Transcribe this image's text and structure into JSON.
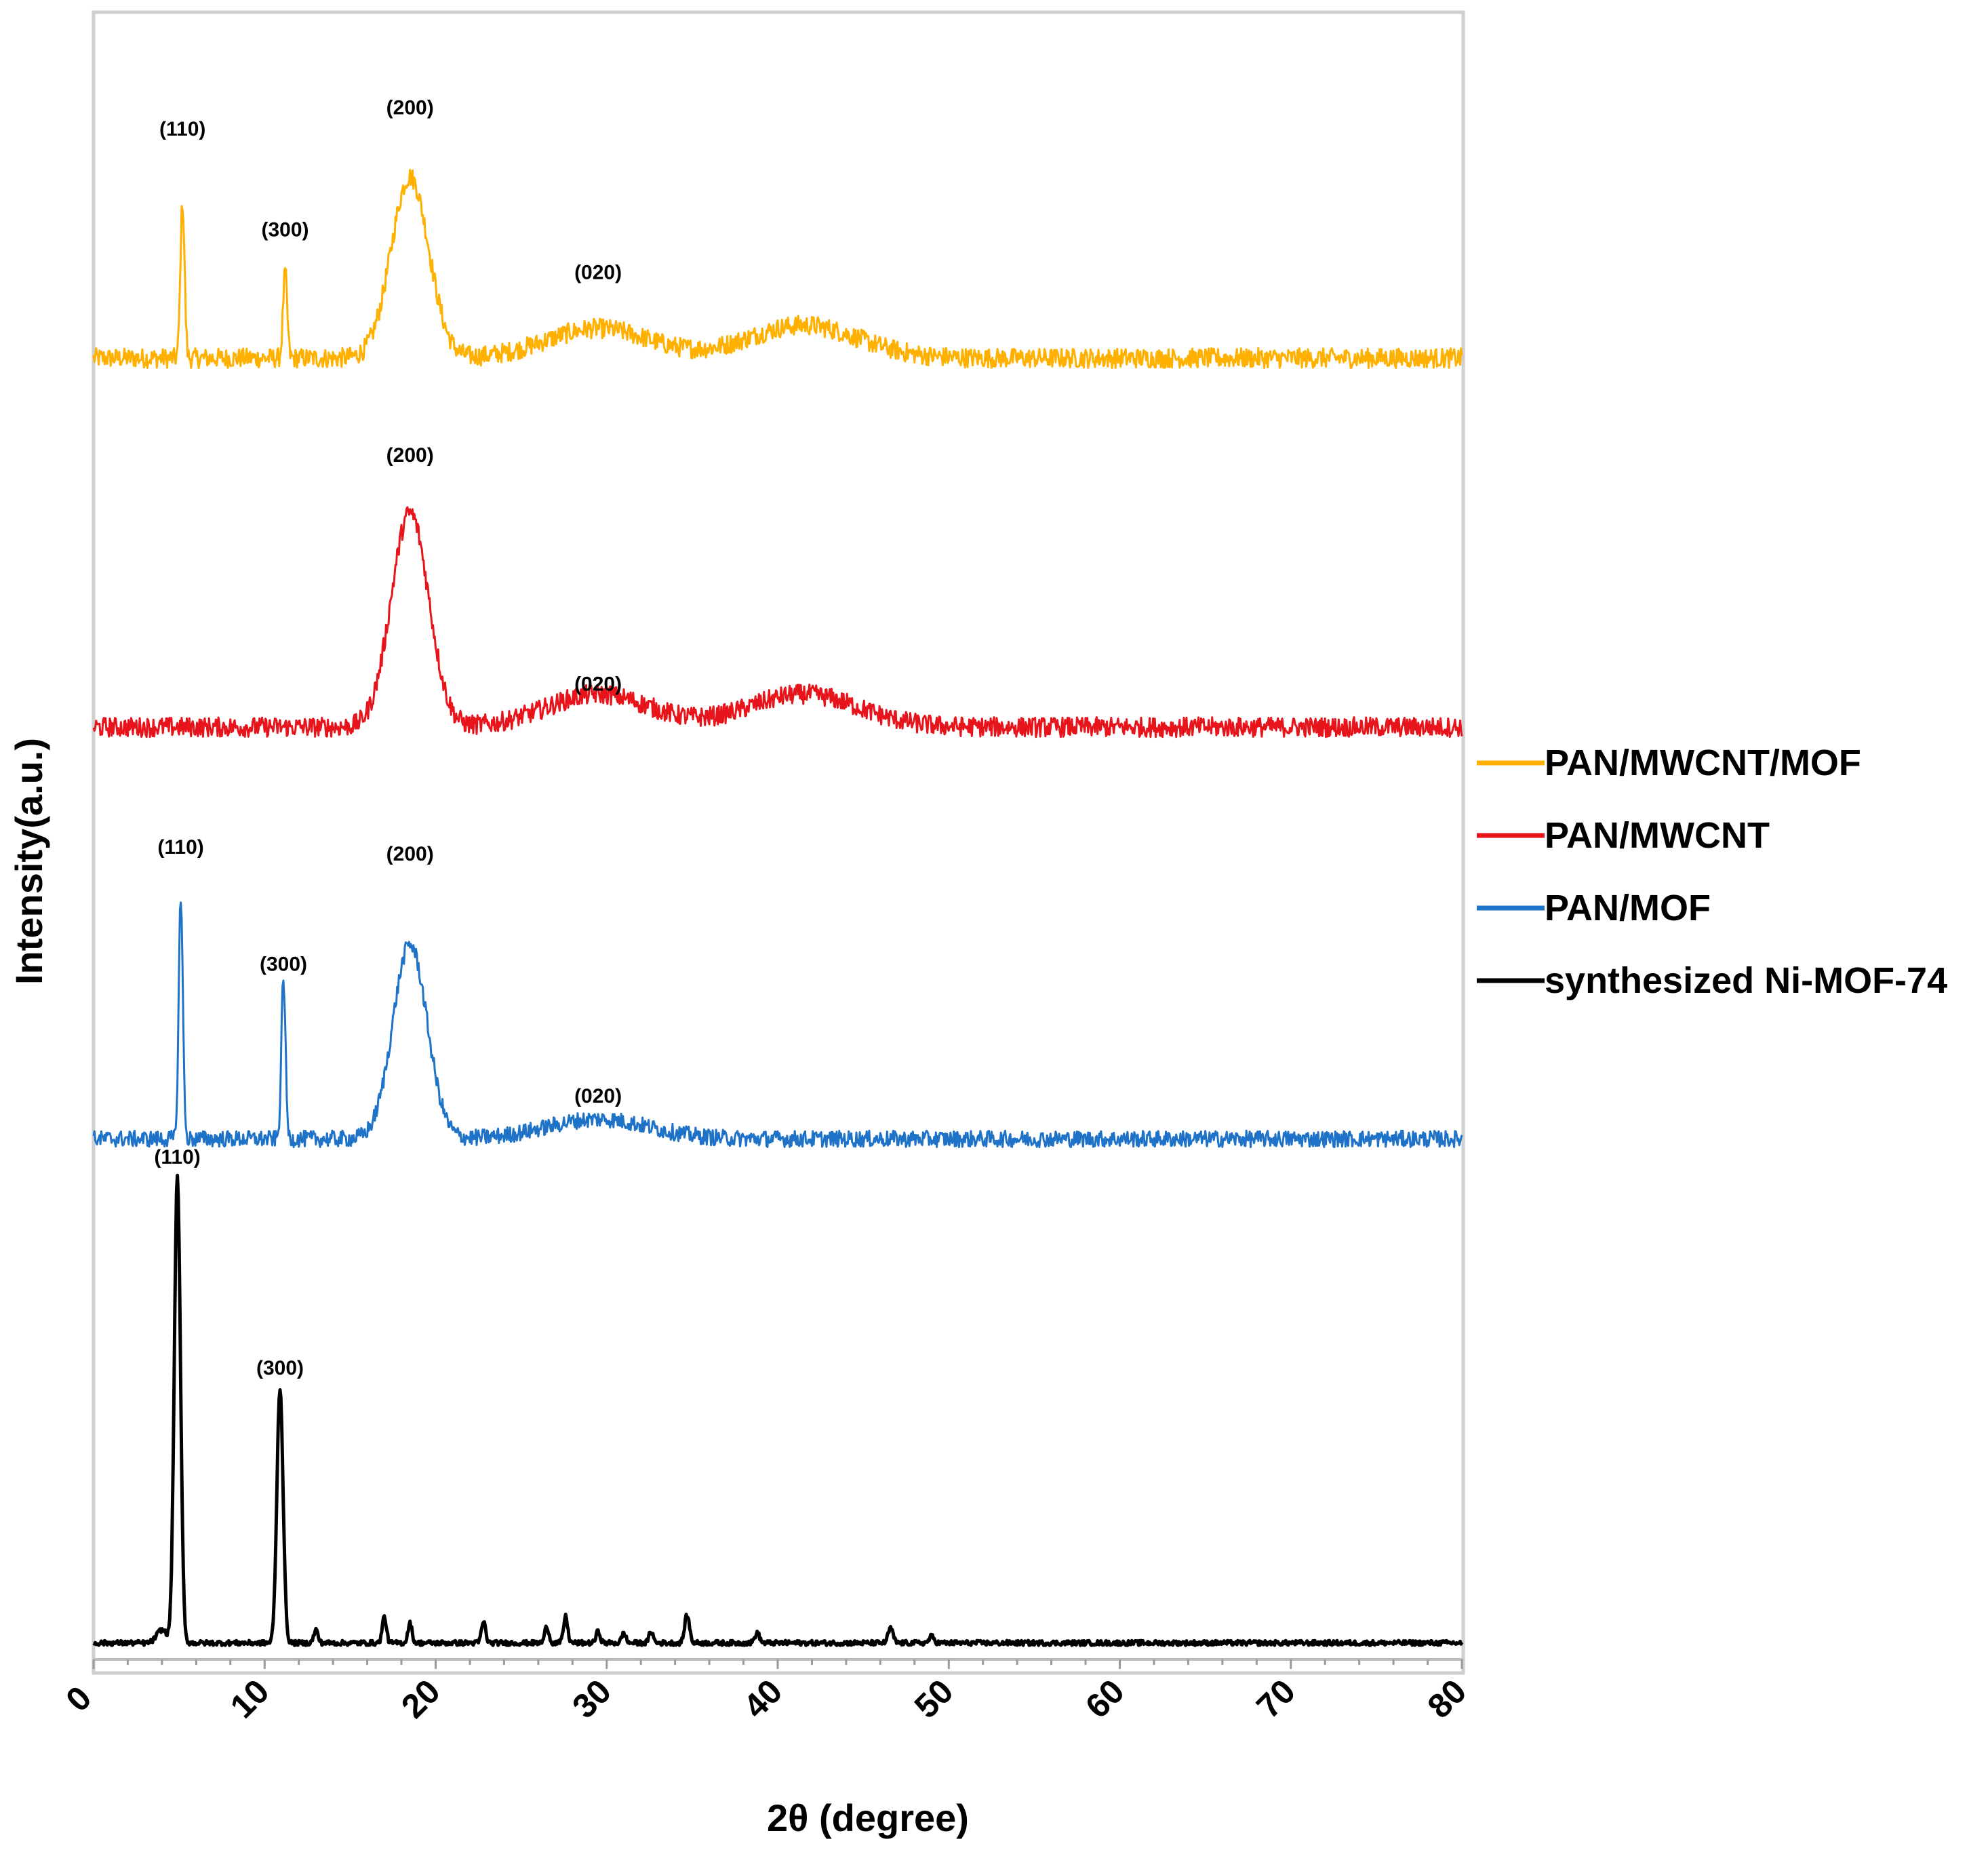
{
  "chart_data": {
    "type": "line",
    "title": "",
    "xlabel": "2θ (degree)",
    "ylabel": "Intensity(a.u.)",
    "xlim": [
      0,
      80
    ],
    "xticks": [
      "0",
      "10",
      "20",
      "30",
      "40",
      "50",
      "60",
      "70",
      "80"
    ],
    "grid": false,
    "legend_position": "right",
    "series": [
      {
        "name": "PAN/MWCNT/MOF",
        "color": "#FFB000",
        "baseline": 0.79,
        "noise": 0.006,
        "peaks": [
          {
            "x": 5.2,
            "h": 0.095,
            "w": 0.12
          },
          {
            "x": 11.2,
            "h": 0.052,
            "w": 0.12
          },
          {
            "x": 18.5,
            "h": 0.11,
            "w": 1.1
          },
          {
            "x": 29.5,
            "h": 0.018,
            "w": 3.0
          },
          {
            "x": 41.5,
            "h": 0.02,
            "w": 3.2
          }
        ],
        "annotations": [
          {
            "label": "(110)",
            "x": 5.2,
            "y": 0.925
          },
          {
            "label": "(300)",
            "x": 11.2,
            "y": 0.864
          },
          {
            "label": "(200)",
            "x": 18.5,
            "y": 0.938
          },
          {
            "label": "(020)",
            "x": 29.5,
            "y": 0.838
          }
        ]
      },
      {
        "name": "PAN/MWCNT",
        "color": "#E8141B",
        "baseline": 0.566,
        "noise": 0.006,
        "peaks": [
          {
            "x": 18.5,
            "h": 0.13,
            "w": 1.1
          },
          {
            "x": 29.5,
            "h": 0.02,
            "w": 3.0
          },
          {
            "x": 41.5,
            "h": 0.02,
            "w": 3.2
          }
        ],
        "annotations": [
          {
            "label": "(200)",
            "x": 18.5,
            "y": 0.727
          },
          {
            "label": "(020)",
            "x": 29.5,
            "y": 0.588
          }
        ]
      },
      {
        "name": "PAN/MOF",
        "color": "#1E72C8",
        "baseline": 0.316,
        "noise": 0.005,
        "peaks": [
          {
            "x": 5.1,
            "h": 0.148,
            "w": 0.12
          },
          {
            "x": 11.1,
            "h": 0.098,
            "w": 0.12
          },
          {
            "x": 18.5,
            "h": 0.118,
            "w": 1.0
          },
          {
            "x": 29.5,
            "h": 0.012,
            "w": 3.0
          }
        ],
        "annotations": [
          {
            "label": "(110)",
            "x": 5.1,
            "y": 0.489
          },
          {
            "label": "(300)",
            "x": 11.1,
            "y": 0.418
          },
          {
            "label": "(200)",
            "x": 18.5,
            "y": 0.485
          },
          {
            "label": "(020)",
            "x": 29.5,
            "y": 0.338
          }
        ]
      },
      {
        "name": "synthesized Ni-MOF-74",
        "color": "#000000",
        "baseline": 0.01,
        "noise": 0.0015,
        "peaks": [
          {
            "x": 4.0,
            "h": 0.008,
            "w": 0.3
          },
          {
            "x": 4.9,
            "h": 0.283,
            "w": 0.18
          },
          {
            "x": 10.9,
            "h": 0.155,
            "w": 0.18
          },
          {
            "x": 13.0,
            "h": 0.008,
            "w": 0.12
          },
          {
            "x": 17.0,
            "h": 0.016,
            "w": 0.12
          },
          {
            "x": 18.5,
            "h": 0.012,
            "w": 0.12
          },
          {
            "x": 22.8,
            "h": 0.013,
            "w": 0.12
          },
          {
            "x": 26.5,
            "h": 0.01,
            "w": 0.12
          },
          {
            "x": 27.6,
            "h": 0.016,
            "w": 0.12
          },
          {
            "x": 29.5,
            "h": 0.007,
            "w": 0.12
          },
          {
            "x": 31.0,
            "h": 0.006,
            "w": 0.12
          },
          {
            "x": 32.6,
            "h": 0.007,
            "w": 0.12
          },
          {
            "x": 34.7,
            "h": 0.017,
            "w": 0.14
          },
          {
            "x": 38.8,
            "h": 0.006,
            "w": 0.14
          },
          {
            "x": 46.6,
            "h": 0.009,
            "w": 0.14
          },
          {
            "x": 49.0,
            "h": 0.004,
            "w": 0.14
          }
        ],
        "annotations": [
          {
            "label": "(110)",
            "x": 4.9,
            "y": 0.301
          },
          {
            "label": "(300)",
            "x": 10.9,
            "y": 0.173
          }
        ]
      }
    ]
  }
}
